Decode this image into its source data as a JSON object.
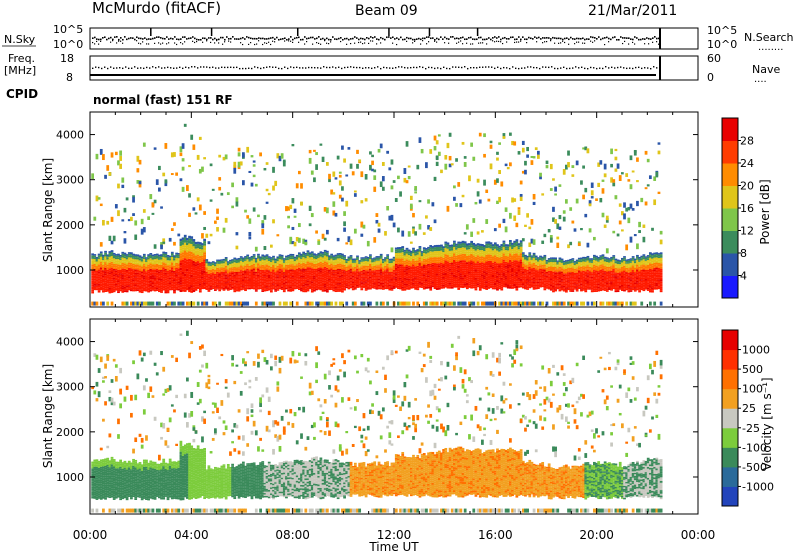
{
  "header": {
    "station": "McMurdo (fitACF)",
    "beam": "Beam 09",
    "date": "21/Mar/2011"
  },
  "strip_nsky": {
    "left_label": "N.Sky",
    "left_ticks": [
      "10^5",
      "10^0"
    ],
    "right_ticks": [
      "10^5",
      "10^0"
    ],
    "right_label": "N.Search",
    "right_legend_marks": "........"
  },
  "strip_freq": {
    "left_label_1": "Freq.",
    "left_label_2": "[MHz]",
    "left_ticks": [
      "18",
      "8"
    ],
    "right_ticks": [
      "60",
      "0"
    ],
    "right_label": "Nave",
    "right_legend_marks": "....",
    "cpid_label": "CPID",
    "cpid_value": "normal (fast) 151 RF"
  },
  "time_axis": {
    "label": "Time UT",
    "ticks": [
      "00:00",
      "04:00",
      "08:00",
      "12:00",
      "16:00",
      "20:00",
      "00:00"
    ]
  },
  "chart_data": [
    {
      "type": "heatmap",
      "name": "power",
      "ylabel": "Slant Range [km]",
      "y_ticks": [
        "1000",
        "2000",
        "3000",
        "4000"
      ],
      "ylim": [
        180,
        4500
      ],
      "xlim_hours": [
        0,
        24
      ],
      "colorbar_label": "Power [dB]",
      "colorbar_ticks": [
        "4",
        "8",
        "12",
        "16",
        "20",
        "24",
        "28"
      ],
      "colorbar_colors": [
        "#1a1aff",
        "#2a55a8",
        "#3b8c5c",
        "#7fc64a",
        "#e0c51a",
        "#ff8c00",
        "#ff3c00",
        "#e80000"
      ],
      "data_end_hour": 22.5
    },
    {
      "type": "heatmap",
      "name": "velocity",
      "ylabel": "Slant Range [km]",
      "y_ticks": [
        "1000",
        "2000",
        "3000",
        "4000"
      ],
      "ylim": [
        180,
        4500
      ],
      "xlim_hours": [
        0,
        24
      ],
      "colorbar_label": "Velocity [m s⁻¹]",
      "colorbar_ticks": [
        "1000",
        "500",
        "100",
        "25",
        "-25",
        "-100",
        "-500",
        "-1000"
      ],
      "colorbar_colors": [
        "#2244bb",
        "#2a6a9a",
        "#3a8a5a",
        "#7ccc3c",
        "#c8c8c0",
        "#f2a020",
        "#ff7000",
        "#ff3000",
        "#e60000"
      ],
      "data_end_hour": 22.5
    }
  ]
}
